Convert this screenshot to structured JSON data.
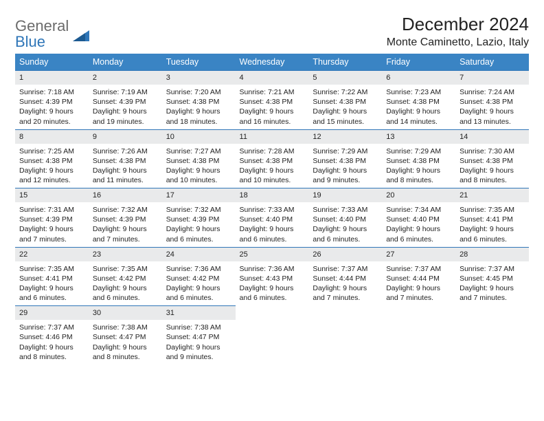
{
  "logo": {
    "part1": "General",
    "part2": "Blue"
  },
  "title": "December 2024",
  "location": "Monte Caminetto, Lazio, Italy",
  "colors": {
    "header_bg": "#3a84c4",
    "header_text": "#ffffff",
    "day_bg": "#e9eaeb",
    "rule": "#2f76b8",
    "logo_gray": "#6b6b6b",
    "logo_blue": "#2f76b8",
    "text": "#222222",
    "page_bg": "#ffffff"
  },
  "typography": {
    "base_family": "Arial, Helvetica, sans-serif",
    "month_fontsize_pt": 20,
    "location_fontsize_pt": 12,
    "weekday_fontsize_pt": 9.5,
    "cell_fontsize_pt": 8
  },
  "weekdays": [
    "Sunday",
    "Monday",
    "Tuesday",
    "Wednesday",
    "Thursday",
    "Friday",
    "Saturday"
  ],
  "days": [
    {
      "n": "1",
      "sunrise": "Sunrise: 7:18 AM",
      "sunset": "Sunset: 4:39 PM",
      "daylight": "Daylight: 9 hours and 20 minutes."
    },
    {
      "n": "2",
      "sunrise": "Sunrise: 7:19 AM",
      "sunset": "Sunset: 4:39 PM",
      "daylight": "Daylight: 9 hours and 19 minutes."
    },
    {
      "n": "3",
      "sunrise": "Sunrise: 7:20 AM",
      "sunset": "Sunset: 4:38 PM",
      "daylight": "Daylight: 9 hours and 18 minutes."
    },
    {
      "n": "4",
      "sunrise": "Sunrise: 7:21 AM",
      "sunset": "Sunset: 4:38 PM",
      "daylight": "Daylight: 9 hours and 16 minutes."
    },
    {
      "n": "5",
      "sunrise": "Sunrise: 7:22 AM",
      "sunset": "Sunset: 4:38 PM",
      "daylight": "Daylight: 9 hours and 15 minutes."
    },
    {
      "n": "6",
      "sunrise": "Sunrise: 7:23 AM",
      "sunset": "Sunset: 4:38 PM",
      "daylight": "Daylight: 9 hours and 14 minutes."
    },
    {
      "n": "7",
      "sunrise": "Sunrise: 7:24 AM",
      "sunset": "Sunset: 4:38 PM",
      "daylight": "Daylight: 9 hours and 13 minutes."
    },
    {
      "n": "8",
      "sunrise": "Sunrise: 7:25 AM",
      "sunset": "Sunset: 4:38 PM",
      "daylight": "Daylight: 9 hours and 12 minutes."
    },
    {
      "n": "9",
      "sunrise": "Sunrise: 7:26 AM",
      "sunset": "Sunset: 4:38 PM",
      "daylight": "Daylight: 9 hours and 11 minutes."
    },
    {
      "n": "10",
      "sunrise": "Sunrise: 7:27 AM",
      "sunset": "Sunset: 4:38 PM",
      "daylight": "Daylight: 9 hours and 10 minutes."
    },
    {
      "n": "11",
      "sunrise": "Sunrise: 7:28 AM",
      "sunset": "Sunset: 4:38 PM",
      "daylight": "Daylight: 9 hours and 10 minutes."
    },
    {
      "n": "12",
      "sunrise": "Sunrise: 7:29 AM",
      "sunset": "Sunset: 4:38 PM",
      "daylight": "Daylight: 9 hours and 9 minutes."
    },
    {
      "n": "13",
      "sunrise": "Sunrise: 7:29 AM",
      "sunset": "Sunset: 4:38 PM",
      "daylight": "Daylight: 9 hours and 8 minutes."
    },
    {
      "n": "14",
      "sunrise": "Sunrise: 7:30 AM",
      "sunset": "Sunset: 4:38 PM",
      "daylight": "Daylight: 9 hours and 8 minutes."
    },
    {
      "n": "15",
      "sunrise": "Sunrise: 7:31 AM",
      "sunset": "Sunset: 4:39 PM",
      "daylight": "Daylight: 9 hours and 7 minutes."
    },
    {
      "n": "16",
      "sunrise": "Sunrise: 7:32 AM",
      "sunset": "Sunset: 4:39 PM",
      "daylight": "Daylight: 9 hours and 7 minutes."
    },
    {
      "n": "17",
      "sunrise": "Sunrise: 7:32 AM",
      "sunset": "Sunset: 4:39 PM",
      "daylight": "Daylight: 9 hours and 6 minutes."
    },
    {
      "n": "18",
      "sunrise": "Sunrise: 7:33 AM",
      "sunset": "Sunset: 4:40 PM",
      "daylight": "Daylight: 9 hours and 6 minutes."
    },
    {
      "n": "19",
      "sunrise": "Sunrise: 7:33 AM",
      "sunset": "Sunset: 4:40 PM",
      "daylight": "Daylight: 9 hours and 6 minutes."
    },
    {
      "n": "20",
      "sunrise": "Sunrise: 7:34 AM",
      "sunset": "Sunset: 4:40 PM",
      "daylight": "Daylight: 9 hours and 6 minutes."
    },
    {
      "n": "21",
      "sunrise": "Sunrise: 7:35 AM",
      "sunset": "Sunset: 4:41 PM",
      "daylight": "Daylight: 9 hours and 6 minutes."
    },
    {
      "n": "22",
      "sunrise": "Sunrise: 7:35 AM",
      "sunset": "Sunset: 4:41 PM",
      "daylight": "Daylight: 9 hours and 6 minutes."
    },
    {
      "n": "23",
      "sunrise": "Sunrise: 7:35 AM",
      "sunset": "Sunset: 4:42 PM",
      "daylight": "Daylight: 9 hours and 6 minutes."
    },
    {
      "n": "24",
      "sunrise": "Sunrise: 7:36 AM",
      "sunset": "Sunset: 4:42 PM",
      "daylight": "Daylight: 9 hours and 6 minutes."
    },
    {
      "n": "25",
      "sunrise": "Sunrise: 7:36 AM",
      "sunset": "Sunset: 4:43 PM",
      "daylight": "Daylight: 9 hours and 6 minutes."
    },
    {
      "n": "26",
      "sunrise": "Sunrise: 7:37 AM",
      "sunset": "Sunset: 4:44 PM",
      "daylight": "Daylight: 9 hours and 7 minutes."
    },
    {
      "n": "27",
      "sunrise": "Sunrise: 7:37 AM",
      "sunset": "Sunset: 4:44 PM",
      "daylight": "Daylight: 9 hours and 7 minutes."
    },
    {
      "n": "28",
      "sunrise": "Sunrise: 7:37 AM",
      "sunset": "Sunset: 4:45 PM",
      "daylight": "Daylight: 9 hours and 7 minutes."
    },
    {
      "n": "29",
      "sunrise": "Sunrise: 7:37 AM",
      "sunset": "Sunset: 4:46 PM",
      "daylight": "Daylight: 9 hours and 8 minutes."
    },
    {
      "n": "30",
      "sunrise": "Sunrise: 7:38 AM",
      "sunset": "Sunset: 4:47 PM",
      "daylight": "Daylight: 9 hours and 8 minutes."
    },
    {
      "n": "31",
      "sunrise": "Sunrise: 7:38 AM",
      "sunset": "Sunset: 4:47 PM",
      "daylight": "Daylight: 9 hours and 9 minutes."
    }
  ]
}
